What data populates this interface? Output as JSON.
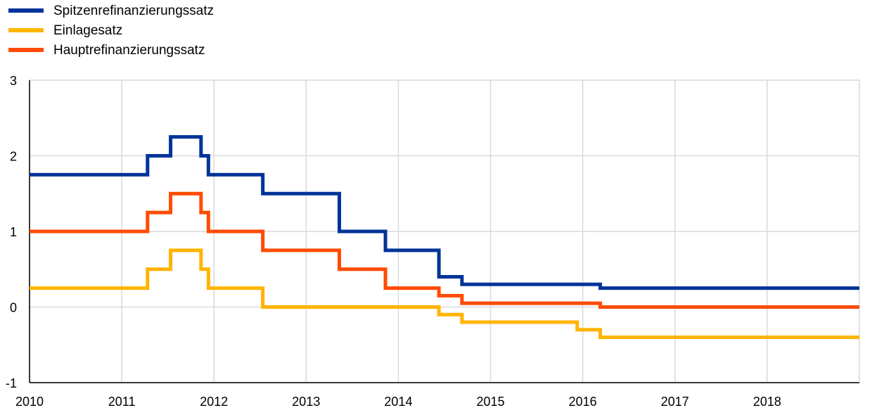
{
  "chart_data": {
    "type": "line",
    "step": true,
    "legend_position": "top-left",
    "grid": true,
    "xlim": [
      2010,
      2019
    ],
    "ylim": [
      -1,
      3
    ],
    "x_ticks": [
      "2010",
      "2011",
      "2012",
      "2013",
      "2014",
      "2015",
      "2016",
      "2017",
      "2018"
    ],
    "y_ticks": [
      "3",
      "2",
      "1",
      "0",
      "-1"
    ],
    "series": [
      {
        "name": "Spitzenrefinanzierungssatz",
        "color": "#003399",
        "points": [
          [
            2010.0,
            1.75
          ],
          [
            2011.28,
            2.0
          ],
          [
            2011.53,
            2.25
          ],
          [
            2011.86,
            2.0
          ],
          [
            2011.94,
            1.75
          ],
          [
            2012.53,
            1.5
          ],
          [
            2013.36,
            1.0
          ],
          [
            2013.86,
            0.75
          ],
          [
            2014.44,
            0.4
          ],
          [
            2014.69,
            0.3
          ],
          [
            2016.19,
            0.25
          ],
          [
            2019.0,
            0.25
          ]
        ]
      },
      {
        "name": "Einlagesatz",
        "color": "#FFB400",
        "points": [
          [
            2010.0,
            0.25
          ],
          [
            2011.28,
            0.5
          ],
          [
            2011.53,
            0.75
          ],
          [
            2011.86,
            0.5
          ],
          [
            2011.94,
            0.25
          ],
          [
            2012.53,
            0.0
          ],
          [
            2014.44,
            -0.1
          ],
          [
            2014.69,
            -0.2
          ],
          [
            2015.94,
            -0.3
          ],
          [
            2016.19,
            -0.4
          ],
          [
            2019.0,
            -0.4
          ]
        ]
      },
      {
        "name": "Hauptrefinanzierungssatz",
        "color": "#FF4B00",
        "points": [
          [
            2010.0,
            1.0
          ],
          [
            2011.28,
            1.25
          ],
          [
            2011.53,
            1.5
          ],
          [
            2011.86,
            1.25
          ],
          [
            2011.94,
            1.0
          ],
          [
            2012.53,
            0.75
          ],
          [
            2013.36,
            0.5
          ],
          [
            2013.86,
            0.25
          ],
          [
            2014.44,
            0.15
          ],
          [
            2014.69,
            0.05
          ],
          [
            2016.19,
            0.0
          ],
          [
            2019.0,
            0.0
          ]
        ]
      }
    ]
  }
}
